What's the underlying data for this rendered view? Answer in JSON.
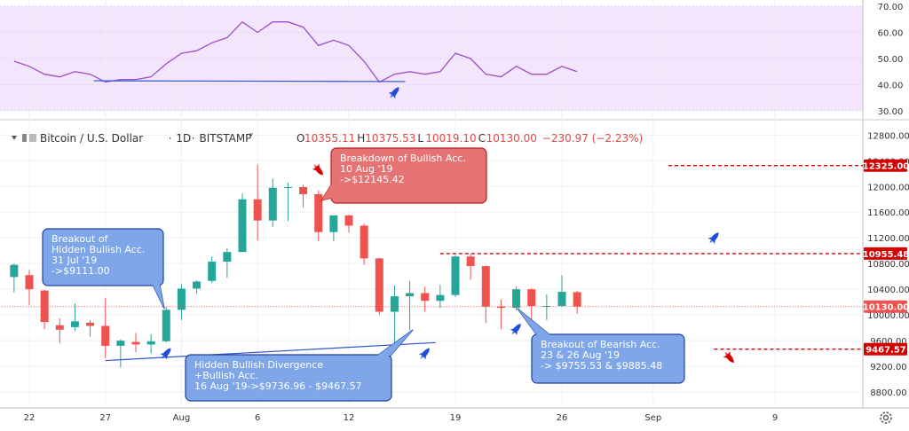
{
  "header": {
    "symbol": "Bitcoin / U.S. Dollar",
    "interval": "1D",
    "exchange": "BITSTAMP",
    "dropdown_glyph": "˅",
    "ohlc": [
      {
        "key": "O",
        "value": "10355.11"
      },
      {
        "key": "H",
        "value": "10375.53"
      },
      {
        "key": "L",
        "value": "10019.10"
      },
      {
        "key": "C",
        "value": "10130.00"
      }
    ],
    "change": "−230.97 (−2.23%)",
    "colors": {
      "down": "#e04848",
      "text": "#333333"
    }
  },
  "colors": {
    "up": "#26a69a",
    "down": "#ef5350",
    "rsi_line": "#9b4fc8",
    "rsi_bg": "#f3e5fc",
    "trend": "#2f54d4",
    "level": "#d50000",
    "price_line": "#ef5350"
  },
  "chart_data": [
    {
      "type": "line",
      "title": "",
      "ylim": [
        30,
        70
      ],
      "ticks": [
        "70.00",
        "60.00",
        "50.00",
        "40.00",
        "30.00"
      ],
      "tick_values": [
        70,
        60,
        50,
        40,
        30
      ],
      "band": [
        30,
        70
      ],
      "x": [
        "Jul 21",
        "Jul 22",
        "Jul 23",
        "Jul 24",
        "Jul 25",
        "Jul 26",
        "Jul 27",
        "Jul 28",
        "Jul 29",
        "Jul 30",
        "Jul 31",
        "Aug 1",
        "Aug 2",
        "Aug 3",
        "Aug 4",
        "Aug 5",
        "Aug 6",
        "Aug 7",
        "Aug 8",
        "Aug 9",
        "Aug 10",
        "Aug 11",
        "Aug 12",
        "Aug 13",
        "Aug 14",
        "Aug 15",
        "Aug 16",
        "Aug 17",
        "Aug 18",
        "Aug 19",
        "Aug 20",
        "Aug 21",
        "Aug 22",
        "Aug 23",
        "Aug 24",
        "Aug 25",
        "Aug 26",
        "Aug 27"
      ],
      "values": [
        49,
        47,
        44,
        43,
        45,
        44,
        41,
        42,
        42,
        43,
        48,
        52,
        53,
        56,
        58,
        64,
        60,
        64,
        64,
        62,
        55,
        57,
        55,
        49,
        41,
        44,
        45,
        44,
        45,
        52,
        50,
        44,
        43,
        47,
        44,
        44,
        47,
        45
      ],
      "divergence_line": {
        "x": [
          "Jul 27",
          "Aug 15"
        ],
        "y": [
          41.5,
          41.2
        ]
      }
    },
    {
      "type": "candlestick",
      "title": "Bitcoin / U.S. Dollar, 1D, BITSTAMP",
      "ylim": [
        8580,
        12970
      ],
      "ticks": [
        "12800.00",
        "12400.00",
        "12000.00",
        "11600.00",
        "11200.00",
        "10800.00",
        "10400.00",
        "10000.00",
        "9600.00",
        "9200.00",
        "8800.00"
      ],
      "tick_values": [
        12800,
        12400,
        12000,
        11600,
        11200,
        10800,
        10400,
        10000,
        9600,
        9200,
        8800
      ],
      "x_ticks": [
        {
          "label": "22",
          "date": "Jul 22"
        },
        {
          "label": "27",
          "date": "Jul 27"
        },
        {
          "label": "Aug",
          "date": "Aug 1"
        },
        {
          "label": "6",
          "date": "Aug 6"
        },
        {
          "label": "12",
          "date": "Aug 12"
        },
        {
          "label": "19",
          "date": "Aug 19"
        },
        {
          "label": "26",
          "date": "Aug 26"
        },
        {
          "label": "Sep",
          "date": "Sep 1"
        },
        {
          "label": "9",
          "date": "Sep 9"
        }
      ],
      "x_domain": [
        "Jul 20",
        "Sep 12"
      ],
      "candles": [
        {
          "d": "Jul 21",
          "o": 10590,
          "h": 10800,
          "l": 10350,
          "c": 10780
        },
        {
          "d": "Jul 22",
          "o": 10620,
          "h": 10700,
          "l": 10150,
          "c": 10400
        },
        {
          "d": "Jul 23",
          "o": 10380,
          "h": 10390,
          "l": 9780,
          "c": 9890
        },
        {
          "d": "Jul 24",
          "o": 9840,
          "h": 9950,
          "l": 9560,
          "c": 9770
        },
        {
          "d": "Jul 25",
          "o": 9810,
          "h": 10180,
          "l": 9750,
          "c": 9900
        },
        {
          "d": "Jul 26",
          "o": 9880,
          "h": 9920,
          "l": 9660,
          "c": 9830
        },
        {
          "d": "Jul 27",
          "o": 9830,
          "h": 10260,
          "l": 9330,
          "c": 9520
        },
        {
          "d": "Jul 28",
          "o": 9520,
          "h": 9620,
          "l": 9180,
          "c": 9600
        },
        {
          "d": "Jul 29",
          "o": 9580,
          "h": 9720,
          "l": 9420,
          "c": 9540
        },
        {
          "d": "Jul 30",
          "o": 9540,
          "h": 9700,
          "l": 9400,
          "c": 9590
        },
        {
          "d": "Jul 31",
          "o": 9590,
          "h": 10130,
          "l": 9570,
          "c": 10080
        },
        {
          "d": "Aug 1",
          "o": 10080,
          "h": 10480,
          "l": 9920,
          "c": 10410
        },
        {
          "d": "Aug 2",
          "o": 10410,
          "h": 10540,
          "l": 10330,
          "c": 10520
        },
        {
          "d": "Aug 3",
          "o": 10530,
          "h": 10910,
          "l": 10500,
          "c": 10830
        },
        {
          "d": "Aug 4",
          "o": 10830,
          "h": 11040,
          "l": 10580,
          "c": 10980
        },
        {
          "d": "Aug 5",
          "o": 10980,
          "h": 11890,
          "l": 10980,
          "c": 11800
        },
        {
          "d": "Aug 6",
          "o": 11800,
          "h": 12340,
          "l": 11160,
          "c": 11470
        },
        {
          "d": "Aug 7",
          "o": 11470,
          "h": 12120,
          "l": 11370,
          "c": 11980
        },
        {
          "d": "Aug 8",
          "o": 11980,
          "h": 12060,
          "l": 11460,
          "c": 11990
        },
        {
          "d": "Aug 9",
          "o": 11990,
          "h": 12030,
          "l": 11670,
          "c": 11880
        },
        {
          "d": "Aug 10",
          "o": 11880,
          "h": 11940,
          "l": 11150,
          "c": 11290
        },
        {
          "d": "Aug 11",
          "o": 11290,
          "h": 11550,
          "l": 11150,
          "c": 11550
        },
        {
          "d": "Aug 12",
          "o": 11550,
          "h": 11560,
          "l": 11280,
          "c": 11390
        },
        {
          "d": "Aug 13",
          "o": 11390,
          "h": 11420,
          "l": 10780,
          "c": 10880
        },
        {
          "d": "Aug 14",
          "o": 10880,
          "h": 10890,
          "l": 10000,
          "c": 10050
        },
        {
          "d": "Aug 15",
          "o": 10050,
          "h": 10460,
          "l": 9480,
          "c": 10290
        },
        {
          "d": "Aug 16",
          "o": 10290,
          "h": 10530,
          "l": 9760,
          "c": 10340
        },
        {
          "d": "Aug 17",
          "o": 10340,
          "h": 10440,
          "l": 10050,
          "c": 10220
        },
        {
          "d": "Aug 18",
          "o": 10220,
          "h": 10470,
          "l": 10110,
          "c": 10310
        },
        {
          "d": "Aug 19",
          "o": 10310,
          "h": 10930,
          "l": 10280,
          "c": 10910
        },
        {
          "d": "Aug 20",
          "o": 10910,
          "h": 10950,
          "l": 10550,
          "c": 10760
        },
        {
          "d": "Aug 21",
          "o": 10760,
          "h": 10770,
          "l": 9870,
          "c": 10130
        },
        {
          "d": "Aug 22",
          "o": 10130,
          "h": 10240,
          "l": 9780,
          "c": 10110
        },
        {
          "d": "Aug 23",
          "o": 10110,
          "h": 10440,
          "l": 10070,
          "c": 10400
        },
        {
          "d": "Aug 24",
          "o": 10400,
          "h": 10420,
          "l": 9880,
          "c": 10140
        },
        {
          "d": "Aug 25",
          "o": 10140,
          "h": 10320,
          "l": 9920,
          "c": 10140
        },
        {
          "d": "Aug 26",
          "o": 10140,
          "h": 10620,
          "l": 10130,
          "c": 10360
        },
        {
          "d": "Aug 27",
          "o": 10355.11,
          "h": 10375.53,
          "l": 10019.1,
          "c": 10130.0
        }
      ],
      "price_labels": [
        {
          "label": "12325.00",
          "value": 12325,
          "line_from": "Sep 2",
          "style": "level"
        },
        {
          "label": "10955.48",
          "value": 10955.48,
          "line_from": "Aug 18",
          "style": "level"
        },
        {
          "label": "10130.00",
          "value": 10130,
          "line_from": "Jul 20",
          "style": "price"
        },
        {
          "label": "9467.57",
          "value": 9467.57,
          "line_from": "Sep 5",
          "style": "level"
        }
      ],
      "trendline": {
        "x": [
          "Jul 27",
          "Aug 17"
        ],
        "y": [
          9290,
          9570
        ]
      },
      "annotations": [
        {
          "name": "breakout-hidden-bullish-callout",
          "theme": "blue",
          "lines": [
            "Breakout of",
            "Hidden Bullish Acc.",
            "31 Jul '19",
            "->$9111.00"
          ],
          "pointer_to": {
            "x": "Jul 31",
            "y": 10130
          }
        },
        {
          "name": "breakdown-bullish-callout",
          "theme": "red",
          "lines": [
            "Breakdown of Bullish Acc.",
            "10 Aug '19",
            "->$12145.42"
          ],
          "pointer_to": {
            "x": "Aug 10",
            "y": 11920
          }
        },
        {
          "name": "hidden-bullish-divergence-callout",
          "theme": "blue",
          "lines": [
            "Hidden Bullish Divergence",
            "+Bullish Acc.",
            "16 Aug '19->$9736.96 - $9467.57"
          ],
          "pointer_to": {
            "x": "Aug 16",
            "y": 9800
          }
        },
        {
          "name": "breakout-bearish-callout",
          "theme": "blue",
          "lines": [
            "Breakout of Bearish Acc.",
            "23 & 26 Aug '19",
            "-> $9755.53 & $9885.48"
          ],
          "pointer_to": {
            "x": "Aug 23",
            "y": 10050
          }
        }
      ],
      "markers": [
        {
          "type": "bullish-rocket",
          "x": "Jul 31",
          "y": 9400
        },
        {
          "type": "bearish-rocket",
          "x": "Aug 10",
          "y": 12260
        },
        {
          "type": "bullish-rocket",
          "x": "Aug 17",
          "y": 9400
        },
        {
          "type": "bullish-rocket",
          "x": "Aug 23",
          "y": 9780
        },
        {
          "type": "bullish-rocket",
          "x": "Sep 5",
          "y": 11200
        },
        {
          "type": "bearish-rocket",
          "x": "Sep 6",
          "y": 9340
        },
        {
          "type": "bullish-rocket",
          "x": "Aug 15",
          "rsi": 37
        }
      ]
    }
  ],
  "footer": {
    "settings_icon": "gear-icon"
  }
}
